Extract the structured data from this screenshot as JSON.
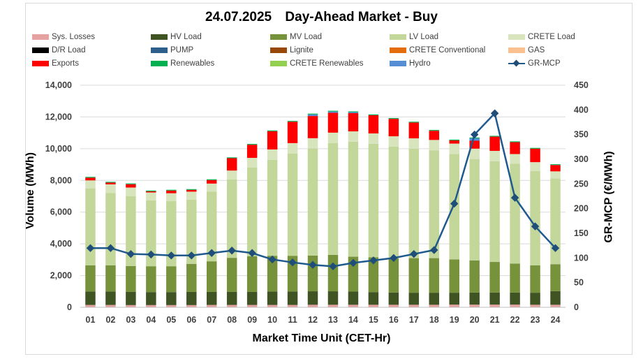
{
  "title": {
    "date": "24.07.2025",
    "text": "Day-Ahead Market - Buy"
  },
  "legend": [
    {
      "label": "Sys. Losses",
      "color": "#e6a1a1",
      "kind": "bar"
    },
    {
      "label": "HV Load",
      "color": "#3f5323",
      "kind": "bar"
    },
    {
      "label": "MV Load",
      "color": "#76933c",
      "kind": "bar"
    },
    {
      "label": "LV Load",
      "color": "#c4d79b",
      "kind": "bar"
    },
    {
      "label": "CRETE Load",
      "color": "#d8e4bc",
      "kind": "bar"
    },
    {
      "label": "D/R Load",
      "color": "#000000",
      "kind": "bar"
    },
    {
      "label": "PUMP",
      "color": "#2e5f8a",
      "kind": "bar"
    },
    {
      "label": "Lignite",
      "color": "#974706",
      "kind": "bar"
    },
    {
      "label": "CRETE Conventional",
      "color": "#e46c0a",
      "kind": "bar"
    },
    {
      "label": "GAS",
      "color": "#fac090",
      "kind": "bar"
    },
    {
      "label": "Exports",
      "color": "#ff0000",
      "kind": "bar"
    },
    {
      "label": "Renewables",
      "color": "#00b050",
      "kind": "bar"
    },
    {
      "label": "CRETE Renewables",
      "color": "#92d050",
      "kind": "bar"
    },
    {
      "label": "Hydro",
      "color": "#558ed5",
      "kind": "bar"
    },
    {
      "label": "GR-MCP",
      "color": "#1f5a8e",
      "kind": "line"
    }
  ],
  "chart_data": {
    "type": "bar",
    "stacked": true,
    "title": "24.07.2025  Day-Ahead Market - Buy",
    "xlabel": "Market Time Unit (CET-Hr)",
    "ylabel": "Volume (MWh)",
    "y2label": "GR-MCP (€/MWh)",
    "ylim": [
      0,
      14000
    ],
    "y2lim": [
      0,
      450
    ],
    "yticks": [
      "0",
      "2,000",
      "4,000",
      "6,000",
      "8,000",
      "10,000",
      "12,000",
      "14,000"
    ],
    "y2ticks": [
      "0",
      "50",
      "100",
      "150",
      "200",
      "250",
      "300",
      "350",
      "400",
      "450"
    ],
    "categories": [
      "01",
      "02",
      "03",
      "04",
      "05",
      "06",
      "07",
      "08",
      "09",
      "10",
      "11",
      "12",
      "13",
      "14",
      "15",
      "16",
      "17",
      "18",
      "19",
      "20",
      "21",
      "22",
      "23",
      "24"
    ],
    "series": [
      {
        "name": "Sys. Losses",
        "color": "#e6a1a1",
        "values": [
          150,
          150,
          140,
          140,
          140,
          140,
          150,
          150,
          150,
          150,
          150,
          160,
          160,
          160,
          160,
          160,
          160,
          160,
          170,
          170,
          170,
          170,
          160,
          160
        ]
      },
      {
        "name": "HV Load",
        "color": "#3f5323",
        "values": [
          850,
          850,
          830,
          820,
          820,
          830,
          820,
          820,
          820,
          850,
          850,
          850,
          850,
          830,
          800,
          770,
          760,
          760,
          750,
          760,
          760,
          760,
          760,
          860
        ]
      },
      {
        "name": "MV Load",
        "color": "#76933c",
        "values": [
          1650,
          1650,
          1630,
          1630,
          1630,
          1770,
          1930,
          2150,
          2250,
          2250,
          2250,
          2250,
          2300,
          2200,
          2200,
          2150,
          2180,
          2180,
          2100,
          2020,
          1930,
          1830,
          1730,
          1700
        ]
      },
      {
        "name": "LV Load",
        "color": "#c4d79b",
        "values": [
          4850,
          4550,
          4400,
          4150,
          4100,
          4050,
          4400,
          4950,
          5600,
          6050,
          6450,
          6750,
          7050,
          7250,
          7150,
          7050,
          6900,
          6800,
          6650,
          6400,
          6350,
          6300,
          5950,
          5400
        ]
      },
      {
        "name": "CRETE Load",
        "color": "#d8e4bc",
        "values": [
          500,
          550,
          550,
          500,
          500,
          500,
          500,
          550,
          600,
          650,
          650,
          650,
          650,
          650,
          650,
          650,
          650,
          650,
          650,
          650,
          650,
          600,
          550,
          450
        ]
      },
      {
        "name": "Exports",
        "color": "#ff0000",
        "values": [
          170,
          110,
          210,
          70,
          170,
          110,
          220,
          780,
          830,
          1150,
          1350,
          1400,
          1250,
          1150,
          1150,
          1100,
          1000,
          580,
          200,
          500,
          900,
          750,
          850,
          400
        ]
      },
      {
        "name": "Hydro",
        "color": "#558ed5",
        "values": [
          0,
          0,
          0,
          0,
          0,
          0,
          0,
          0,
          0,
          0,
          0,
          100,
          80,
          60,
          0,
          0,
          0,
          0,
          0,
          150,
          0,
          0,
          0,
          0
        ]
      },
      {
        "name": "Renewables",
        "color": "#00b050",
        "values": [
          50,
          50,
          50,
          50,
          50,
          50,
          50,
          50,
          50,
          50,
          50,
          50,
          50,
          50,
          50,
          50,
          50,
          50,
          50,
          50,
          50,
          50,
          50,
          50
        ]
      }
    ],
    "line": {
      "name": "GR-MCP",
      "axis": "right",
      "color": "#1f5a8e",
      "values": [
        120,
        120,
        108,
        107,
        105,
        105,
        110,
        115,
        110,
        97,
        91,
        86,
        83,
        90,
        95,
        100,
        108,
        116,
        210,
        350,
        393,
        222,
        164,
        120
      ]
    }
  },
  "labels": {
    "ylabel": "Volume (MWh)",
    "y2label": "GR-MCP (€/MWh)",
    "xlabel": "Market Time Unit (CET-Hr)"
  }
}
